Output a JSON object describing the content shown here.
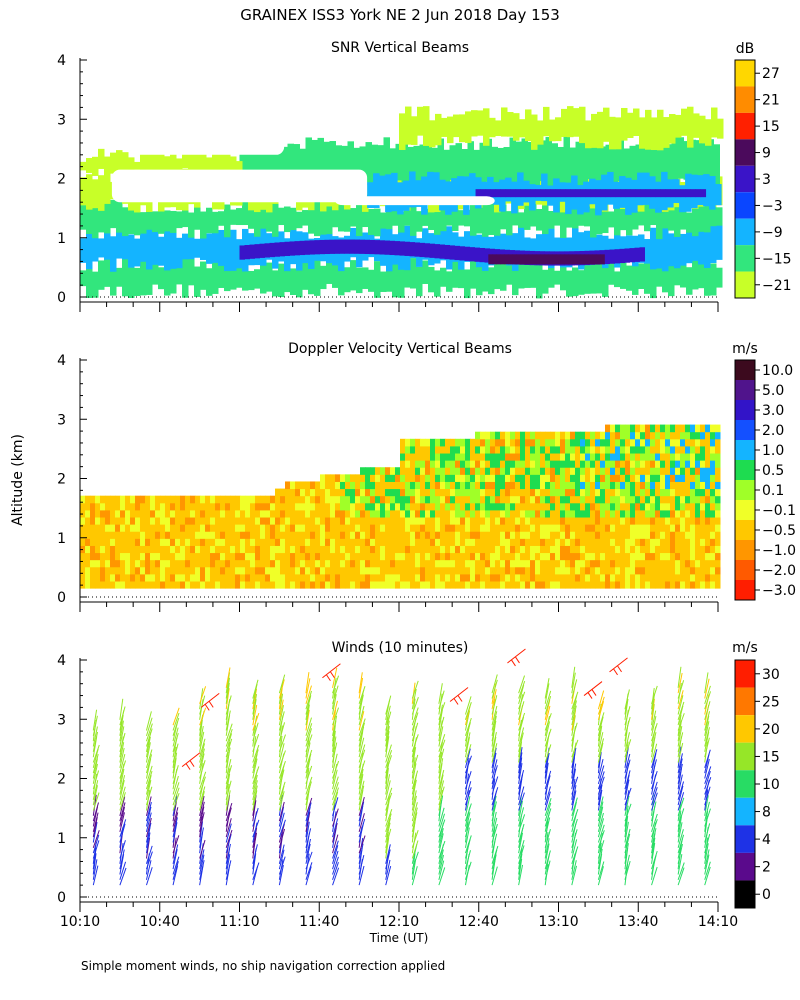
{
  "figure": {
    "title": "GRAINEX ISS3 York NE   2 Jun 2018 Day 153",
    "y_axis_label": "Altitude (km)",
    "x_axis_label": "Time (UT)",
    "footnote": "Simple moment winds, no ship navigation correction applied"
  },
  "chart_data": [
    {
      "type": "heatmap",
      "title": "SNR Vertical Beams",
      "ylim": [
        0,
        4
      ],
      "y_ticks": [
        "0",
        "1",
        "2",
        "3",
        "4"
      ],
      "x_range": [
        "10:10",
        "14:10"
      ],
      "colorbar": {
        "unit": "dB",
        "ticks": [
          "27",
          "21",
          "15",
          "9",
          "3",
          "−3",
          "−9",
          "−15",
          "−21"
        ],
        "colors": [
          "#ffd700",
          "#ff8c00",
          "#ff2000",
          "#4b0a5c",
          "#3a14c8",
          "#0a46ff",
          "#14b4ff",
          "#32e67d",
          "#c8ff28"
        ]
      }
    },
    {
      "type": "heatmap",
      "title": "Doppler Velocity Vertical Beams",
      "ylim": [
        0,
        4
      ],
      "y_ticks": [
        "0",
        "1",
        "2",
        "3",
        "4"
      ],
      "x_range": [
        "10:10",
        "14:10"
      ],
      "colorbar": {
        "unit": "m/s",
        "ticks": [
          "10.0",
          "5.0",
          "3.0",
          "2.0",
          "1.0",
          "0.5",
          "0.1",
          "−0.1",
          "−0.5",
          "−1.0",
          "−2.0",
          "−3.0"
        ],
        "colors": [
          "#3c0a1e",
          "#50148c",
          "#3214c8",
          "#1450ff",
          "#14b4ff",
          "#1edc50",
          "#a0ff28",
          "#f0ff28",
          "#ffc800",
          "#ff9600",
          "#ff5a00",
          "#ff1e00"
        ]
      }
    },
    {
      "type": "scatter",
      "title": "Winds (10 minutes)",
      "ylim": [
        0,
        4
      ],
      "y_ticks": [
        "0",
        "1",
        "2",
        "3",
        "4"
      ],
      "x_ticks": [
        "10:10",
        "10:40",
        "11:10",
        "11:40",
        "12:10",
        "12:40",
        "13:10",
        "13:40",
        "14:10"
      ],
      "colorbar": {
        "unit": "m/s",
        "ticks": [
          "30",
          "25",
          "20",
          "15",
          "10",
          "8",
          "4",
          "2",
          "0"
        ],
        "colors": [
          "#ff1e00",
          "#ff7800",
          "#ffc800",
          "#96e628",
          "#28dc64",
          "#14b4ff",
          "#1e32e6",
          "#5a0a8c",
          "#000000"
        ]
      }
    }
  ]
}
